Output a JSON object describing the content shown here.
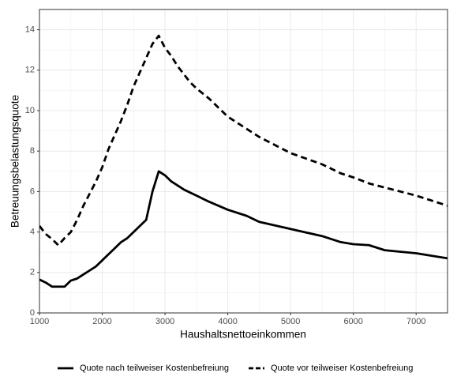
{
  "chart_data": {
    "type": "line",
    "x_label": "Haushaltsnettoeinkommen",
    "y_label": "Betreuungsbelastungsquote",
    "x": [
      1000,
      1100,
      1200,
      1300,
      1400,
      1500,
      1600,
      1700,
      1800,
      1900,
      2000,
      2100,
      2200,
      2300,
      2400,
      2500,
      2600,
      2700,
      2800,
      2900,
      3000,
      3100,
      3200,
      3300,
      3400,
      3500,
      3700,
      4000,
      4300,
      4500,
      5000,
      5500,
      5800,
      6000,
      6250,
      6500,
      7000,
      7500
    ],
    "series": [
      {
        "name": "Quote nach teilweiser Kostenbefreiung",
        "color": "#000000",
        "linestyle": "solid",
        "values": [
          1.65,
          1.5,
          1.3,
          1.3,
          1.3,
          1.6,
          1.7,
          1.9,
          2.1,
          2.3,
          2.6,
          2.9,
          3.2,
          3.5,
          3.7,
          4.0,
          4.3,
          4.6,
          6.0,
          7.0,
          6.8,
          6.5,
          6.3,
          6.1,
          5.95,
          5.8,
          5.5,
          5.1,
          4.8,
          4.5,
          4.15,
          3.8,
          3.5,
          3.4,
          3.35,
          3.1,
          2.95,
          2.7
        ]
      },
      {
        "name": "Quote vor teilweiser Kostenbefreiung",
        "color": "#000000",
        "linestyle": "dashed",
        "values": [
          4.3,
          3.9,
          3.65,
          3.35,
          3.7,
          4.0,
          4.6,
          5.3,
          5.9,
          6.5,
          7.2,
          8.1,
          8.8,
          9.5,
          10.3,
          11.2,
          11.9,
          12.6,
          13.3,
          13.7,
          13.1,
          12.7,
          12.2,
          11.8,
          11.4,
          11.1,
          10.6,
          9.7,
          9.1,
          8.7,
          7.9,
          7.35,
          6.9,
          6.7,
          6.4,
          6.2,
          5.8,
          5.3
        ]
      }
    ],
    "xlim": [
      1000,
      7500
    ],
    "ylim": [
      0,
      15
    ],
    "xticks": [
      1000,
      2000,
      3000,
      4000,
      5000,
      6000,
      7000
    ],
    "yticks": [
      0,
      2,
      4,
      6,
      8,
      10,
      12,
      14
    ],
    "grid": true,
    "minor_grid": true,
    "legend_position": "bottom"
  }
}
